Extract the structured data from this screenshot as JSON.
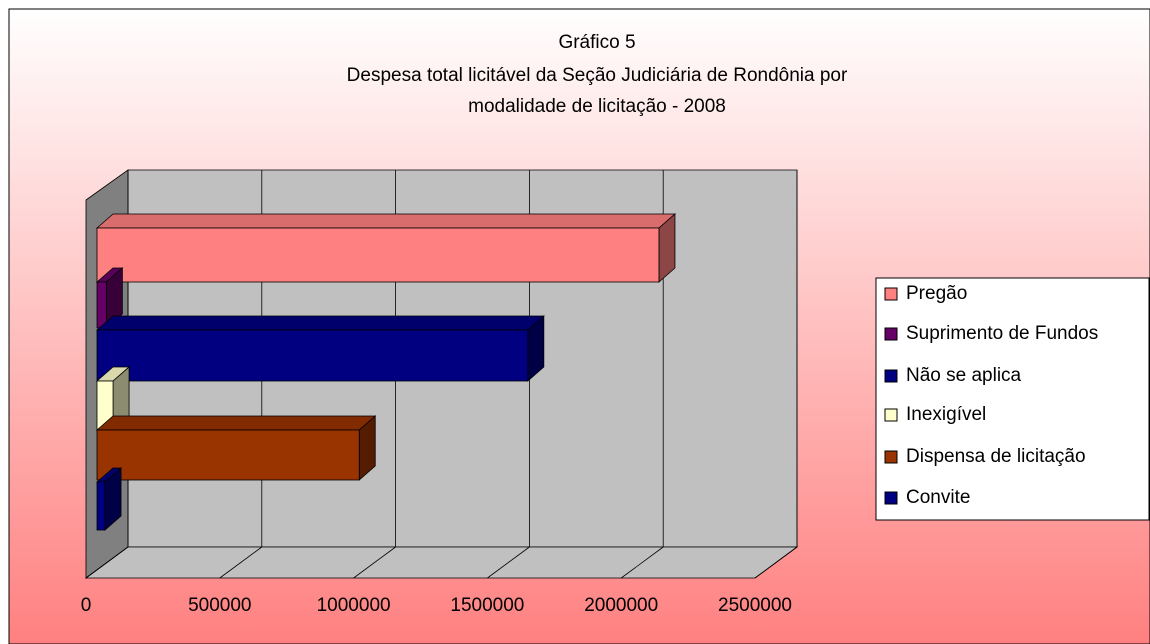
{
  "chart_data": {
    "type": "bar",
    "orientation": "horizontal",
    "title": "Gráfico 5",
    "subtitle": [
      "Despesa total licitável da Seção Judiciária de Rondônia por",
      "modalidade de licitação - 2008"
    ],
    "series": [
      {
        "name": "Pregão",
        "color": "#ff8080",
        "values": [
          2100000
        ]
      },
      {
        "name": "Suprimento de Fundos",
        "color": "#660066",
        "values": [
          35000
        ]
      },
      {
        "name": "Não se aplica",
        "color": "#000080",
        "values": [
          1610000
        ]
      },
      {
        "name": "Inexigível",
        "color": "#ffffcc",
        "values": [
          60000
        ]
      },
      {
        "name": "Dispensa de licitação",
        "color": "#993300",
        "values": [
          980000
        ]
      },
      {
        "name": "Convite",
        "color": "#000080",
        "values": [
          30000
        ]
      }
    ],
    "xlim": [
      0,
      2500000
    ],
    "xticks": [
      0,
      500000,
      1000000,
      1500000,
      2000000,
      2500000
    ],
    "grid": true,
    "legend": "right"
  }
}
